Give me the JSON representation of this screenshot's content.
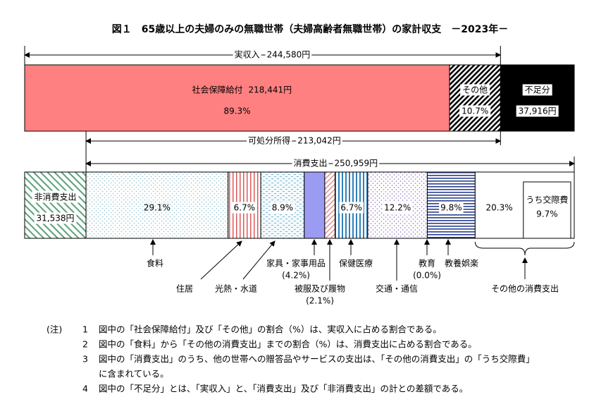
{
  "title": "図１　65歳以上の夫婦のみの無職世帯（夫婦高齢者無職世帯）の家計収支　－2023年－",
  "income": {
    "name": "実収入",
    "value": 244580,
    "label": "244,580円",
    "parts": [
      {
        "name": "社会保障給付",
        "amount": 218441,
        "amount_label": "218,441円",
        "value": 89.3,
        "label": "89.3%"
      },
      {
        "name": "その他",
        "value": 10.7,
        "label": "10.7%"
      }
    ]
  },
  "shortage": {
    "name": "不足分",
    "value": 37916,
    "label": "37,916円"
  },
  "disposable": {
    "name": "可処分所得",
    "value": 213042,
    "label": "213,042円"
  },
  "non_consumption": {
    "name": "非消費支出",
    "value": 31538,
    "label": "31,538円"
  },
  "consumption": {
    "name": "消費支出",
    "value": 250959,
    "label": "250,959円",
    "items": [
      {
        "name": "食料",
        "value": 29.1,
        "label": "29.1%"
      },
      {
        "name": "住居",
        "value": 6.7,
        "label": "6.7%"
      },
      {
        "name": "光熱・水道",
        "value": 8.9,
        "label": "8.9%"
      },
      {
        "name": "家具・家事用品",
        "value": 4.2,
        "label": "(4.2%)"
      },
      {
        "name": "被服及び履物",
        "value": 2.1,
        "label": "(2.1%)"
      },
      {
        "name": "保健医療",
        "value": 6.7,
        "label": "6.7%"
      },
      {
        "name": "交通・通信",
        "value": 12.2,
        "label": "12.2%"
      },
      {
        "name": "教育",
        "value": 0.0,
        "label": "(0.0%)"
      },
      {
        "name": "教養娯楽",
        "value": 9.8,
        "label": "9.8%"
      },
      {
        "name": "その他の消費支出",
        "value": 20.3,
        "label": "20.3%",
        "sub": {
          "name": "うち交際費",
          "value": 9.7,
          "label": "9.7%"
        }
      }
    ]
  },
  "notes": {
    "prefix": "(注)",
    "items": [
      {
        "num": "1",
        "lines": [
          "図中の「社会保障給付」及び「その他」の割合（%）は、実収入に占める割合である。"
        ]
      },
      {
        "num": "2",
        "lines": [
          "図中の「食料」から「その他の消費支出」までの割合（%）は、消費支出に占める割合である。"
        ]
      },
      {
        "num": "3",
        "lines": [
          "図中の「消費支出」のうち、他の世帯への贈答品やサービスの支出は、「その他の消費支出」の「うち交際費」",
          "に含まれている。"
        ]
      },
      {
        "num": "4",
        "lines": [
          "図中の「不足分」とは、「実収入」と、「消費支出」及び「非消費支出」の計との差額である。"
        ]
      }
    ]
  }
}
